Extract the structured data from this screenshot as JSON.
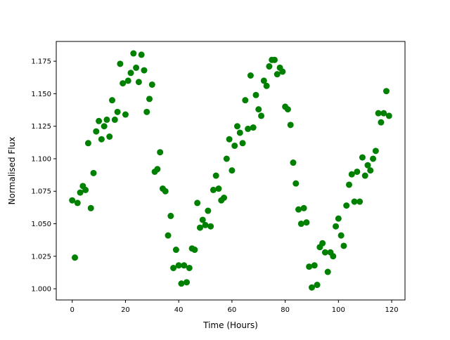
{
  "chart_data": {
    "type": "scatter",
    "title": "",
    "xlabel": "Time (Hours)",
    "ylabel": "Normalised Flux",
    "xlim": [
      -6,
      125
    ],
    "ylim": [
      0.9914,
      1.1902
    ],
    "xticks": [
      0,
      20,
      40,
      60,
      80,
      100,
      120
    ],
    "xtick_labels": [
      "0",
      "20",
      "40",
      "60",
      "80",
      "100",
      "120"
    ],
    "yticks": [
      1.0,
      1.025,
      1.05,
      1.075,
      1.1,
      1.125,
      1.15,
      1.175
    ],
    "ytick_labels": [
      "1.000",
      "1.025",
      "1.050",
      "1.075",
      "1.100",
      "1.125",
      "1.150",
      "1.175"
    ],
    "grid": false,
    "marker_color": "#008000",
    "x": [
      0,
      1,
      2,
      3,
      4,
      5,
      6,
      7,
      8,
      9,
      10,
      11,
      12,
      13,
      14,
      15,
      16,
      17,
      18,
      19,
      20,
      21,
      22,
      23,
      24,
      25,
      26,
      27,
      28,
      29,
      30,
      31,
      32,
      33,
      34,
      35,
      36,
      37,
      38,
      39,
      40,
      41,
      42,
      43,
      44,
      45,
      46,
      47,
      48,
      49,
      50,
      51,
      52,
      53,
      54,
      55,
      56,
      57,
      58,
      59,
      60,
      61,
      62,
      63,
      64,
      65,
      66,
      67,
      68,
      69,
      70,
      71,
      72,
      73,
      74,
      75,
      76,
      77,
      78,
      79,
      80,
      81,
      82,
      83,
      84,
      85,
      86,
      87,
      88,
      89,
      90,
      91,
      92,
      93,
      94,
      95,
      96,
      97,
      98,
      99,
      100,
      101,
      102,
      103,
      104,
      105,
      106,
      107,
      108,
      109,
      110,
      111,
      112,
      113,
      114,
      115,
      116,
      117,
      118,
      119
    ],
    "y": [
      1.068,
      1.024,
      1.066,
      1.074,
      1.079,
      1.076,
      1.112,
      1.062,
      1.089,
      1.121,
      1.129,
      1.115,
      1.125,
      1.13,
      1.117,
      1.145,
      1.13,
      1.136,
      1.173,
      1.158,
      1.134,
      1.16,
      1.166,
      1.181,
      1.17,
      1.159,
      1.18,
      1.168,
      1.136,
      1.146,
      1.157,
      1.09,
      1.092,
      1.105,
      1.077,
      1.075,
      1.041,
      1.056,
      1.016,
      1.03,
      1.018,
      1.004,
      1.018,
      1.005,
      1.016,
      1.031,
      1.03,
      1.066,
      1.047,
      1.053,
      1.049,
      1.06,
      1.048,
      1.076,
      1.087,
      1.077,
      1.068,
      1.07,
      1.1,
      1.115,
      1.091,
      1.11,
      1.125,
      1.12,
      1.112,
      1.145,
      1.123,
      1.164,
      1.124,
      1.149,
      1.138,
      1.133,
      1.16,
      1.156,
      1.171,
      1.176,
      1.176,
      1.165,
      1.17,
      1.167,
      1.14,
      1.138,
      1.126,
      1.097,
      1.081,
      1.061,
      1.05,
      1.062,
      1.051,
      1.017,
      1.001,
      1.018,
      1.003,
      1.032,
      1.035,
      1.028,
      1.013,
      1.028,
      1.025,
      1.048,
      1.054,
      1.041,
      1.033,
      1.064,
      1.08,
      1.088,
      1.067,
      1.09,
      1.067,
      1.101,
      1.087,
      1.095,
      1.091,
      1.1,
      1.106,
      1.135,
      1.128,
      1.135,
      1.152,
      1.133
    ]
  }
}
